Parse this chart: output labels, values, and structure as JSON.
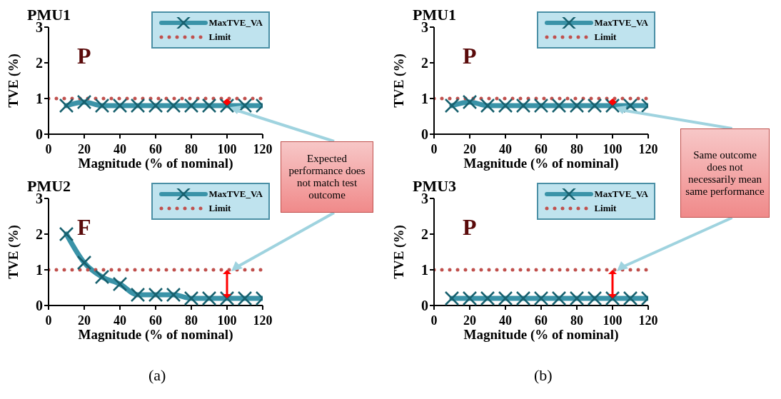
{
  "chart_data": [
    {
      "type": "line",
      "title": "PMU1",
      "xlabel": "Magnitude (% of nominal)",
      "ylabel": "TVE (%)",
      "xlim": [
        0,
        120
      ],
      "xticks": [
        0,
        20,
        40,
        60,
        80,
        100,
        120
      ],
      "ylim": [
        0,
        3
      ],
      "yticks": [
        0,
        1,
        2,
        3
      ],
      "legend": "top right",
      "annotations": [
        "P",
        "Expected performance does not match test outcome"
      ],
      "series": [
        {
          "name": "MaxTVE_VA",
          "color": "#3a93a8",
          "marker": "cross",
          "line_style": "solid",
          "x": [
            10,
            20,
            30,
            40,
            50,
            60,
            70,
            80,
            90,
            100,
            110,
            120
          ],
          "values": [
            0.8,
            0.9,
            0.8,
            0.8,
            0.8,
            0.8,
            0.8,
            0.8,
            0.8,
            0.8,
            0.8,
            0.8
          ]
        },
        {
          "name": "Limit",
          "color": "#c0504d",
          "marker": "none",
          "line_style": "dotted",
          "x": [
            0,
            120
          ],
          "values": [
            1,
            1
          ]
        }
      ]
    },
    {
      "type": "line",
      "title": "PMU1",
      "xlabel": "Magnitude (% of nominal)",
      "ylabel": "TVE (%)",
      "xlim": [
        0,
        120
      ],
      "xticks": [
        0,
        20,
        40,
        60,
        80,
        100,
        120
      ],
      "ylim": [
        0,
        3
      ],
      "yticks": [
        0,
        1,
        2,
        3
      ],
      "legend": "top right",
      "annotations": [
        "P",
        "Same outcome does not necessarily mean same performance"
      ],
      "series": [
        {
          "name": "MaxTVE_VA",
          "color": "#3a93a8",
          "marker": "cross",
          "line_style": "solid",
          "x": [
            10,
            20,
            30,
            40,
            50,
            60,
            70,
            80,
            90,
            100,
            110,
            120
          ],
          "values": [
            0.8,
            0.9,
            0.8,
            0.8,
            0.8,
            0.8,
            0.8,
            0.8,
            0.8,
            0.8,
            0.8,
            0.8
          ]
        },
        {
          "name": "Limit",
          "color": "#c0504d",
          "marker": "none",
          "line_style": "dotted",
          "x": [
            0,
            120
          ],
          "values": [
            1,
            1
          ]
        }
      ]
    },
    {
      "type": "line",
      "title": "PMU2",
      "xlabel": "Magnitude (% of nominal)",
      "ylabel": "TVE (%)",
      "xlim": [
        0,
        120
      ],
      "xticks": [
        0,
        20,
        40,
        60,
        80,
        100,
        120
      ],
      "ylim": [
        0,
        3
      ],
      "yticks": [
        0,
        1,
        2,
        3
      ],
      "legend": "top right",
      "annotations": [
        "F",
        "(a)"
      ],
      "series": [
        {
          "name": "MaxTVE_VA",
          "color": "#3a93a8",
          "marker": "cross",
          "line_style": "solid",
          "x": [
            10,
            20,
            30,
            40,
            50,
            60,
            70,
            80,
            90,
            100,
            110,
            120
          ],
          "values": [
            2.0,
            1.2,
            0.8,
            0.6,
            0.3,
            0.3,
            0.3,
            0.2,
            0.2,
            0.2,
            0.2,
            0.2
          ]
        },
        {
          "name": "Limit",
          "color": "#c0504d",
          "marker": "none",
          "line_style": "dotted",
          "x": [
            0,
            120
          ],
          "values": [
            1,
            1
          ]
        }
      ]
    },
    {
      "type": "line",
      "title": "PMU3",
      "xlabel": "Magnitude (% of nominal)",
      "ylabel": "TVE (%)",
      "xlim": [
        0,
        120
      ],
      "xticks": [
        0,
        20,
        40,
        60,
        80,
        100,
        120
      ],
      "ylim": [
        0,
        3
      ],
      "yticks": [
        0,
        1,
        2,
        3
      ],
      "legend": "top right",
      "annotations": [
        "P",
        "(b)"
      ],
      "series": [
        {
          "name": "MaxTVE_VA",
          "color": "#3a93a8",
          "marker": "cross",
          "line_style": "solid",
          "x": [
            10,
            20,
            30,
            40,
            50,
            60,
            70,
            80,
            90,
            100,
            110,
            120
          ],
          "values": [
            0.2,
            0.2,
            0.2,
            0.2,
            0.2,
            0.2,
            0.2,
            0.2,
            0.2,
            0.2,
            0.2,
            0.2
          ]
        },
        {
          "name": "Limit",
          "color": "#c0504d",
          "marker": "none",
          "line_style": "dotted",
          "x": [
            0,
            120
          ],
          "values": [
            1,
            1
          ]
        }
      ]
    }
  ]
}
